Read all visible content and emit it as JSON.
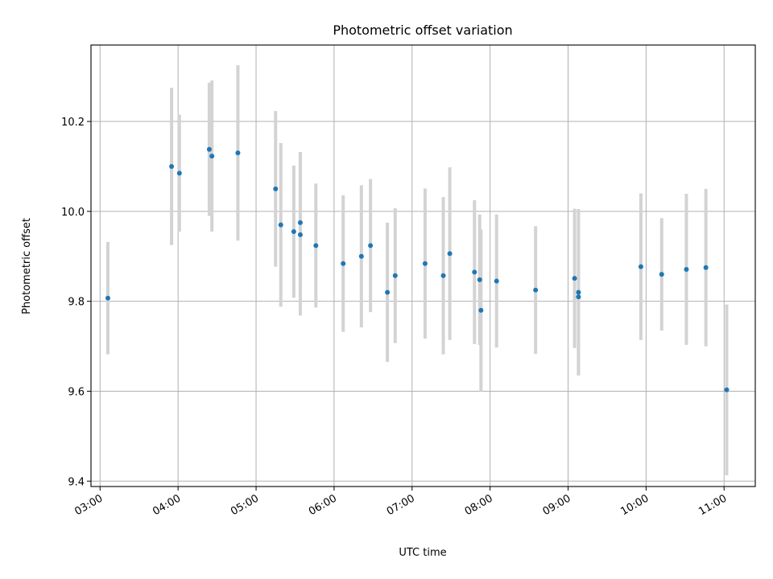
{
  "chart_data": {
    "type": "scatter",
    "title": "Photometric offset variation",
    "xlabel": "UTC time",
    "ylabel": "Photometric offset",
    "x_unit": "UTC time (HH:MM)",
    "xlim": [
      "02:53",
      "11:24"
    ],
    "ylim": [
      9.388,
      10.37
    ],
    "x_ticks": [
      "03:00",
      "04:00",
      "05:00",
      "06:00",
      "07:00",
      "08:00",
      "09:00",
      "10:00",
      "11:00"
    ],
    "y_ticks": [
      9.4,
      9.6,
      9.8,
      10.0,
      10.2
    ],
    "grid": true,
    "marker_color": "#1f77b4",
    "errorbar_color": "#d3d3d3",
    "points": [
      {
        "x": "03:06",
        "y": 9.807,
        "err": 0.125
      },
      {
        "x": "03:55",
        "y": 10.1,
        "err": 0.175
      },
      {
        "x": "04:01",
        "y": 10.085,
        "err": 0.13
      },
      {
        "x": "04:24",
        "y": 10.138,
        "err": 0.148
      },
      {
        "x": "04:26",
        "y": 10.123,
        "err": 0.168
      },
      {
        "x": "04:46",
        "y": 10.13,
        "err": 0.195
      },
      {
        "x": "05:15",
        "y": 10.05,
        "err": 0.173
      },
      {
        "x": "05:19",
        "y": 9.97,
        "err": 0.182
      },
      {
        "x": "05:29",
        "y": 9.955,
        "err": 0.147
      },
      {
        "x": "05:34",
        "y": 9.975,
        "err": 0.157
      },
      {
        "x": "05:34",
        "y": 9.948,
        "err": 0.18
      },
      {
        "x": "05:46",
        "y": 9.924,
        "err": 0.138
      },
      {
        "x": "06:07",
        "y": 9.884,
        "err": 0.152
      },
      {
        "x": "06:21",
        "y": 9.9,
        "err": 0.158
      },
      {
        "x": "06:28",
        "y": 9.924,
        "err": 0.148
      },
      {
        "x": "06:41",
        "y": 9.82,
        "err": 0.155
      },
      {
        "x": "06:47",
        "y": 9.857,
        "err": 0.15
      },
      {
        "x": "07:10",
        "y": 9.884,
        "err": 0.167
      },
      {
        "x": "07:24",
        "y": 9.857,
        "err": 0.175
      },
      {
        "x": "07:29",
        "y": 9.906,
        "err": 0.192
      },
      {
        "x": "07:48",
        "y": 9.865,
        "err": 0.16
      },
      {
        "x": "07:52",
        "y": 9.848,
        "err": 0.145
      },
      {
        "x": "07:53",
        "y": 9.78,
        "err": 0.18
      },
      {
        "x": "08:05",
        "y": 9.845,
        "err": 0.148
      },
      {
        "x": "08:35",
        "y": 9.825,
        "err": 0.142
      },
      {
        "x": "09:05",
        "y": 9.851,
        "err": 0.155
      },
      {
        "x": "09:08",
        "y": 9.82,
        "err": 0.185
      },
      {
        "x": "09:08",
        "y": 9.81,
        "err": 0.175
      },
      {
        "x": "09:56",
        "y": 9.877,
        "err": 0.163
      },
      {
        "x": "10:12",
        "y": 9.86,
        "err": 0.125
      },
      {
        "x": "10:31",
        "y": 9.871,
        "err": 0.168
      },
      {
        "x": "10:46",
        "y": 9.875,
        "err": 0.175
      },
      {
        "x": "11:02",
        "y": 9.603,
        "err": 0.19
      }
    ]
  }
}
